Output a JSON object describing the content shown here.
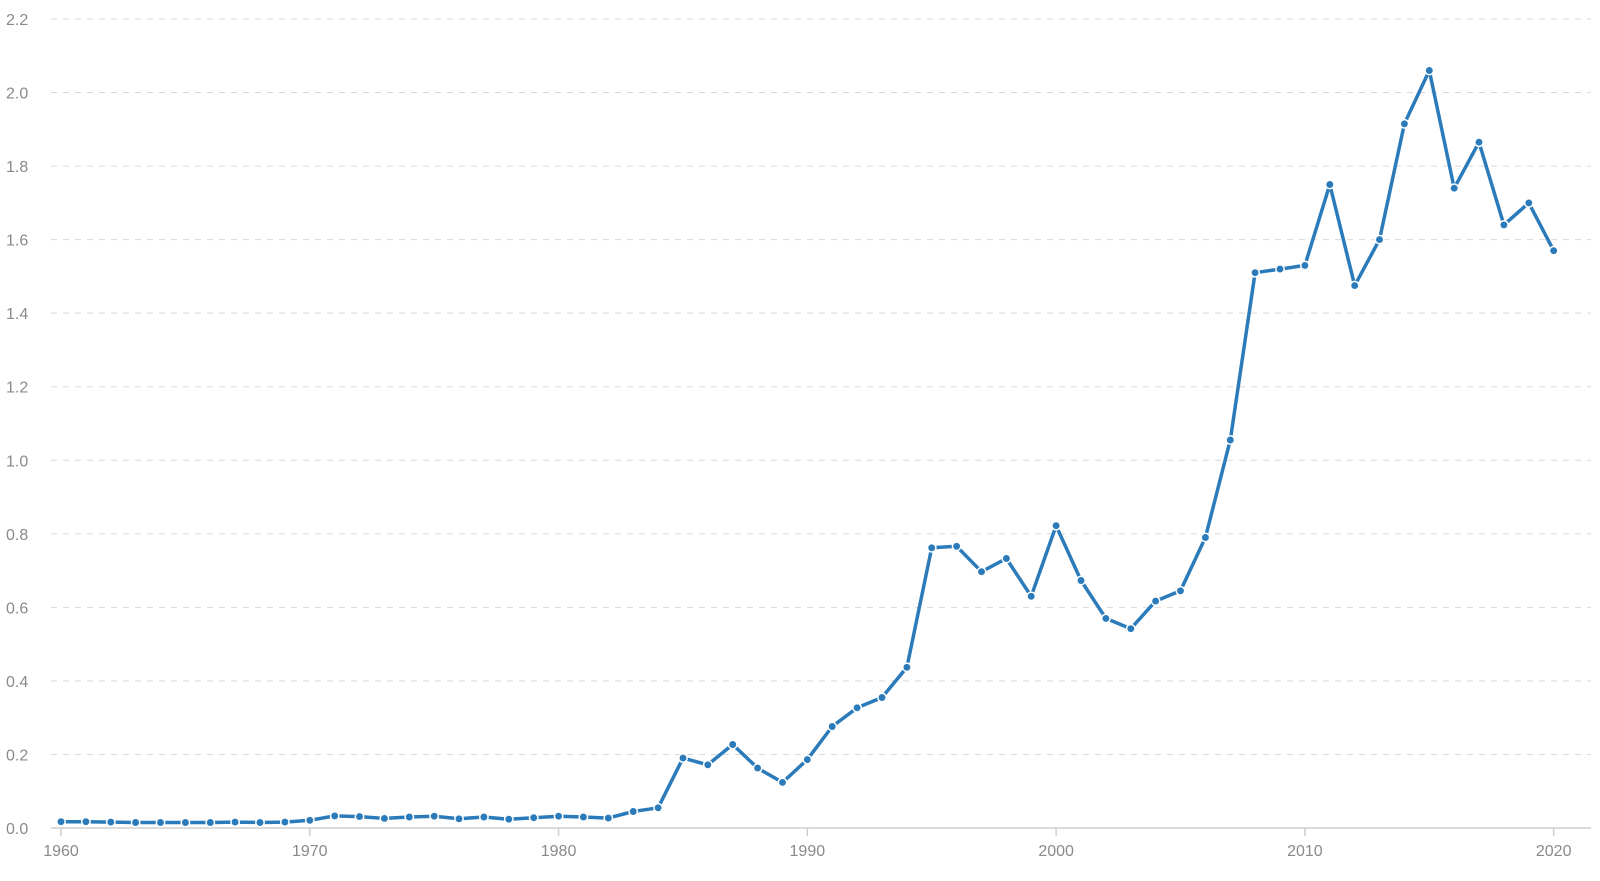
{
  "colors": {
    "series": "#2b7bba"
  },
  "chart_data": {
    "type": "line",
    "title": "",
    "xlabel": "",
    "ylabel": "",
    "xlim": [
      1960,
      2021.5
    ],
    "ylim": [
      0,
      2.2
    ],
    "y_ticks": [
      "0.0",
      "0.2",
      "0.4",
      "0.6",
      "0.8",
      "1.0",
      "1.2",
      "1.4",
      "1.6",
      "1.8",
      "2.0",
      "2.2"
    ],
    "x_ticks": [
      "1960",
      "1970",
      "1980",
      "1990",
      "2000",
      "2010",
      "2020"
    ],
    "grid": "horizontal dashed",
    "legend": "none",
    "series": [
      {
        "x": [
          1960,
          1961,
          1962,
          1963,
          1964,
          1965,
          1966,
          1967,
          1968,
          1969,
          1970,
          1971,
          1972,
          1973,
          1974,
          1975,
          1976,
          1977,
          1978,
          1979,
          1980,
          1981,
          1982,
          1983,
          1984,
          1985,
          1986,
          1987,
          1988,
          1989,
          1990,
          1991,
          1992,
          1993,
          1994,
          1995,
          1996,
          1997,
          1998,
          1999,
          2000,
          2001,
          2002,
          2003,
          2004,
          2005,
          2006,
          2007,
          2008,
          2009,
          2010,
          2011,
          2012,
          2013,
          2014,
          2015,
          2016,
          2017,
          2018,
          2019,
          2020
        ],
        "values": [
          0.017,
          0.017,
          0.016,
          0.015,
          0.015,
          0.015,
          0.015,
          0.016,
          0.015,
          0.016,
          0.021,
          0.033,
          0.031,
          0.026,
          0.03,
          0.032,
          0.025,
          0.03,
          0.024,
          0.028,
          0.032,
          0.03,
          0.027,
          0.045,
          0.055,
          0.19,
          0.172,
          0.227,
          0.163,
          0.124,
          0.186,
          0.276,
          0.327,
          0.355,
          0.437,
          0.762,
          0.766,
          0.697,
          0.733,
          0.63,
          0.822,
          0.673,
          0.57,
          0.542,
          0.617,
          0.645,
          0.79,
          1.055,
          1.51,
          1.52,
          1.53,
          1.75,
          1.475,
          1.6,
          1.915,
          2.06,
          1.74,
          1.865,
          1.64,
          1.7,
          1.57
        ]
      }
    ]
  }
}
